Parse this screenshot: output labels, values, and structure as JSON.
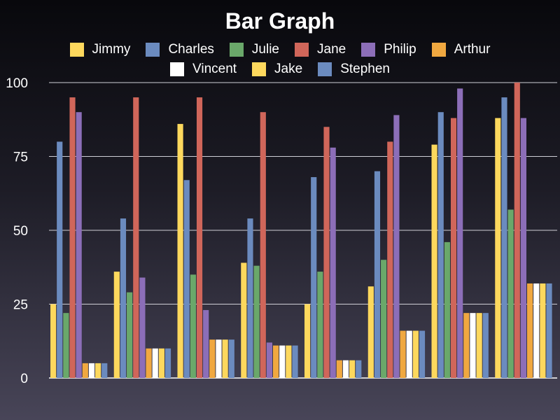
{
  "chart_data": {
    "type": "bar",
    "title": "Bar Graph",
    "xlabel": "",
    "ylabel": "",
    "ylim": [
      0,
      100
    ],
    "yticks": [
      0,
      25,
      50,
      75,
      100
    ],
    "grid": true,
    "legend_position": "top",
    "categories": [
      "",
      "",
      "",
      "",
      "",
      "",
      "",
      ""
    ],
    "series": [
      {
        "name": "Jimmy",
        "color": "#fdd85d",
        "values": [
          25,
          36,
          86,
          39,
          25,
          31,
          79,
          88
        ]
      },
      {
        "name": "Charles",
        "color": "#6b8bbf",
        "values": [
          80,
          54,
          67,
          54,
          68,
          70,
          90,
          95
        ]
      },
      {
        "name": "Julie",
        "color": "#6aa86a",
        "values": [
          22,
          29,
          35,
          38,
          36,
          40,
          46,
          57
        ]
      },
      {
        "name": "Jane",
        "color": "#d0665a",
        "values": [
          95,
          95,
          95,
          90,
          85,
          80,
          88,
          100
        ]
      },
      {
        "name": "Philip",
        "color": "#8c6eb8",
        "values": [
          90,
          34,
          23,
          12,
          78,
          89,
          98,
          88
        ]
      },
      {
        "name": "Arthur",
        "color": "#f0a840",
        "values": [
          5,
          10,
          13,
          11,
          6,
          16,
          22,
          32
        ]
      },
      {
        "name": "Vincent",
        "color": "#ffffff",
        "values": [
          5,
          10,
          13,
          11,
          6,
          16,
          22,
          32
        ]
      },
      {
        "name": "Jake",
        "color": "#fdd85d",
        "values": [
          5,
          10,
          13,
          11,
          6,
          16,
          22,
          32
        ]
      },
      {
        "name": "Stephen",
        "color": "#6b8bbf",
        "values": [
          5,
          10,
          13,
          11,
          6,
          16,
          22,
          32
        ]
      }
    ]
  }
}
